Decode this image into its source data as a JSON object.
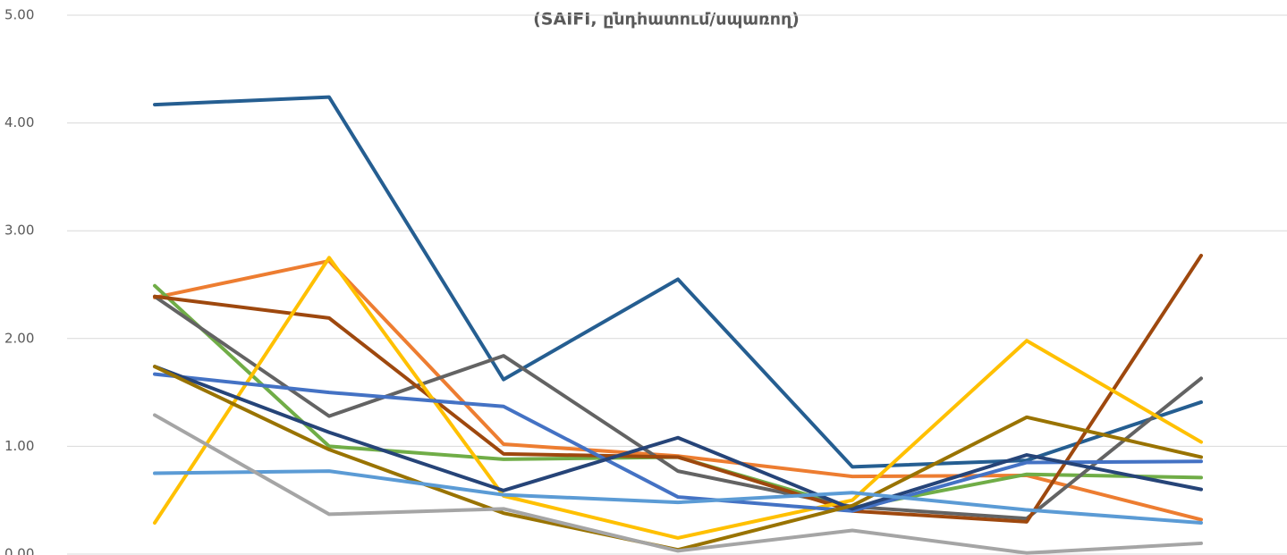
{
  "chart_data": {
    "type": "line",
    "title": "(SAIFI, ընդհատում/սպառող)",
    "categories": [
      null,
      null,
      null,
      null,
      null,
      null,
      null
    ],
    "ylim": [
      0,
      5
    ],
    "yticks": [
      {
        "value": 0,
        "label": "0.00"
      },
      {
        "value": 1,
        "label": "1.00"
      },
      {
        "value": 2,
        "label": "2.00"
      },
      {
        "value": 3,
        "label": "3.00"
      },
      {
        "value": 4,
        "label": "4.00"
      },
      {
        "value": 5,
        "label": "5.00"
      }
    ],
    "grid": true,
    "series": [
      {
        "color": "#255e91",
        "values": [
          4.17,
          4.24,
          1.62,
          2.55,
          0.81,
          0.87,
          1.41
        ]
      },
      {
        "color": "#ed7d31",
        "values": [
          2.38,
          2.72,
          1.02,
          0.91,
          0.72,
          0.73,
          0.32
        ]
      },
      {
        "color": "#70ad47",
        "values": [
          2.49,
          1.0,
          0.88,
          0.9,
          0.43,
          0.74,
          0.71
        ]
      },
      {
        "color": "#636363",
        "values": [
          2.39,
          1.28,
          1.84,
          0.77,
          0.44,
          0.33,
          1.63
        ]
      },
      {
        "color": "#9e480e",
        "values": [
          2.39,
          2.19,
          0.93,
          0.9,
          0.4,
          0.3,
          2.77
        ]
      },
      {
        "color": "#ffc000",
        "values": [
          0.29,
          2.75,
          0.54,
          0.15,
          0.5,
          1.98,
          1.04
        ]
      },
      {
        "color": "#4472c4",
        "values": [
          1.67,
          1.5,
          1.37,
          0.53,
          0.4,
          0.85,
          0.86
        ]
      },
      {
        "color": "#264478",
        "values": [
          1.74,
          1.13,
          0.59,
          1.08,
          0.42,
          0.92,
          0.6
        ]
      },
      {
        "color": "#997300",
        "values": [
          1.74,
          0.97,
          0.38,
          0.04,
          0.45,
          1.27,
          0.9
        ]
      },
      {
        "color": "#5b9bd5",
        "values": [
          0.75,
          0.77,
          0.55,
          0.48,
          0.57,
          0.41,
          0.29
        ]
      },
      {
        "color": "#a5a5a5",
        "values": [
          1.29,
          0.37,
          0.42,
          0.03,
          0.22,
          0.01,
          0.1
        ]
      }
    ]
  }
}
